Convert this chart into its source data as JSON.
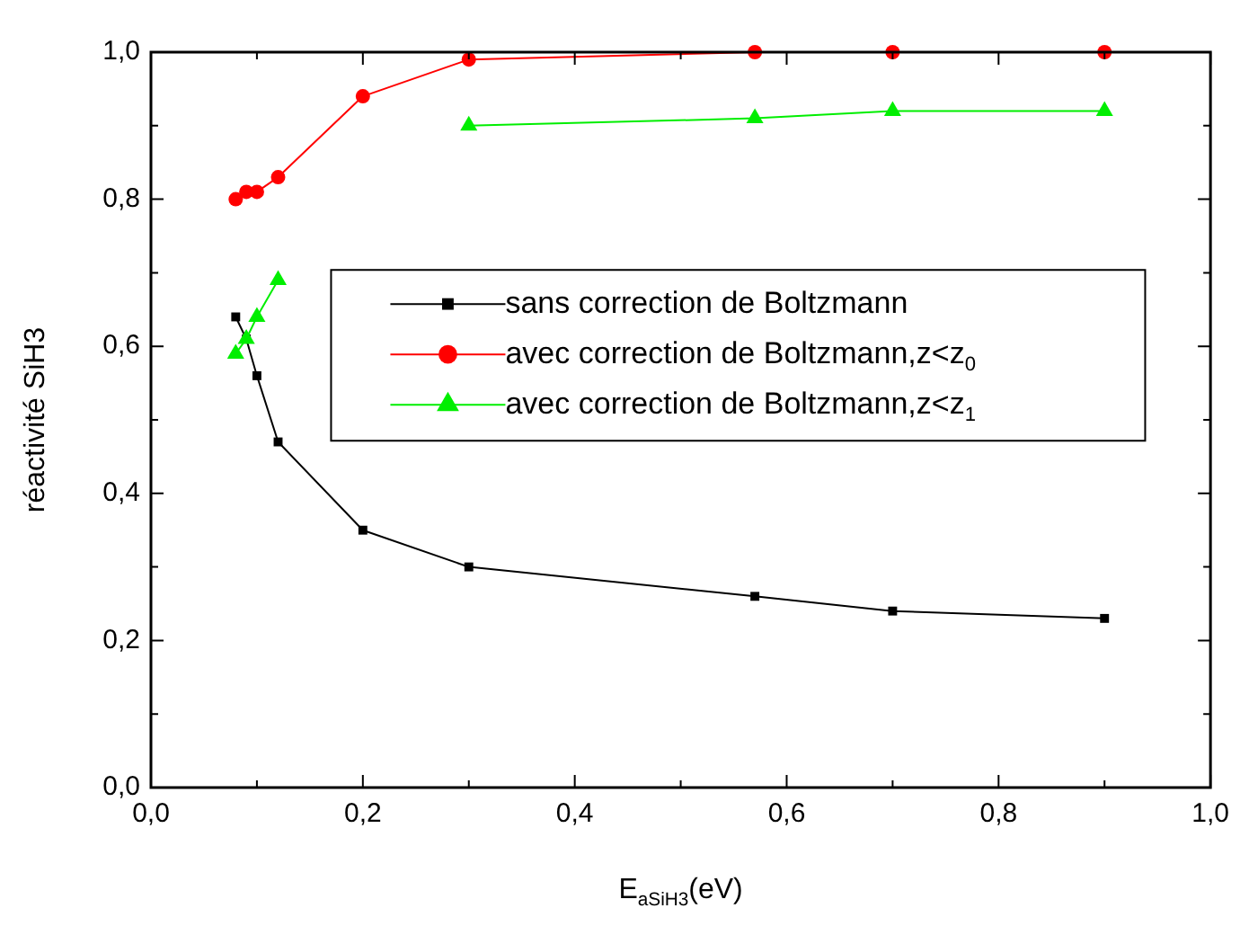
{
  "chart_data": {
    "type": "line",
    "xlabel": "E$_{aSiH3}$(eV)",
    "ylabel": "réactivité SiH3",
    "x": [
      0.08,
      0.09,
      0.1,
      0.12,
      0.2,
      0.3,
      0.57,
      0.7,
      0.9
    ],
    "series": [
      {
        "name": "sans correction de Boltzmann",
        "color": "#000000",
        "marker": "square",
        "values": [
          0.64,
          0.61,
          0.56,
          0.47,
          0.35,
          0.3,
          0.26,
          0.24,
          0.23
        ]
      },
      {
        "name": "avec correction de Boltzmann,z<z$_{0}$",
        "color": "#ff0000",
        "marker": "circle",
        "values": [
          0.8,
          0.81,
          0.81,
          0.83,
          0.94,
          0.99,
          1.0,
          1.0,
          1.0
        ]
      },
      {
        "name": "avec correction de Boltzmann,z<z$_{1}$",
        "color": "#00ee00",
        "marker": "triangle",
        "values": [
          0.59,
          0.61,
          0.64,
          0.69,
          null,
          0.9,
          0.91,
          0.92,
          0.92
        ]
      }
    ],
    "xlim": [
      0,
      1
    ],
    "ylim": [
      0,
      1
    ],
    "xticks": [
      {
        "value": 0,
        "label": "0,0"
      },
      {
        "value": 0.1,
        "label": null
      },
      {
        "value": 0.2,
        "label": "0,2"
      },
      {
        "value": 0.3,
        "label": null
      },
      {
        "value": 0.4,
        "label": "0,4"
      },
      {
        "value": 0.5,
        "label": null
      },
      {
        "value": 0.6,
        "label": "0,6"
      },
      {
        "value": 0.7,
        "label": null
      },
      {
        "value": 0.8,
        "label": "0,8"
      },
      {
        "value": 0.9,
        "label": null
      },
      {
        "value": 1,
        "label": "1,0"
      }
    ],
    "yticks": [
      {
        "value": 0,
        "label": "0,0"
      },
      {
        "value": 0.1,
        "label": null
      },
      {
        "value": 0.2,
        "label": "0,2"
      },
      {
        "value": 0.3,
        "label": null
      },
      {
        "value": 0.4,
        "label": "0,4"
      },
      {
        "value": 0.5,
        "label": null
      },
      {
        "value": 0.6,
        "label": "0,6"
      },
      {
        "value": 0.7,
        "label": null
      },
      {
        "value": 0.8,
        "label": "0,8"
      },
      {
        "value": 0.9,
        "label": null
      },
      {
        "value": 1,
        "label": "1,0"
      }
    ],
    "legend": "right",
    "grid": false,
    "line_style": "solid"
  }
}
